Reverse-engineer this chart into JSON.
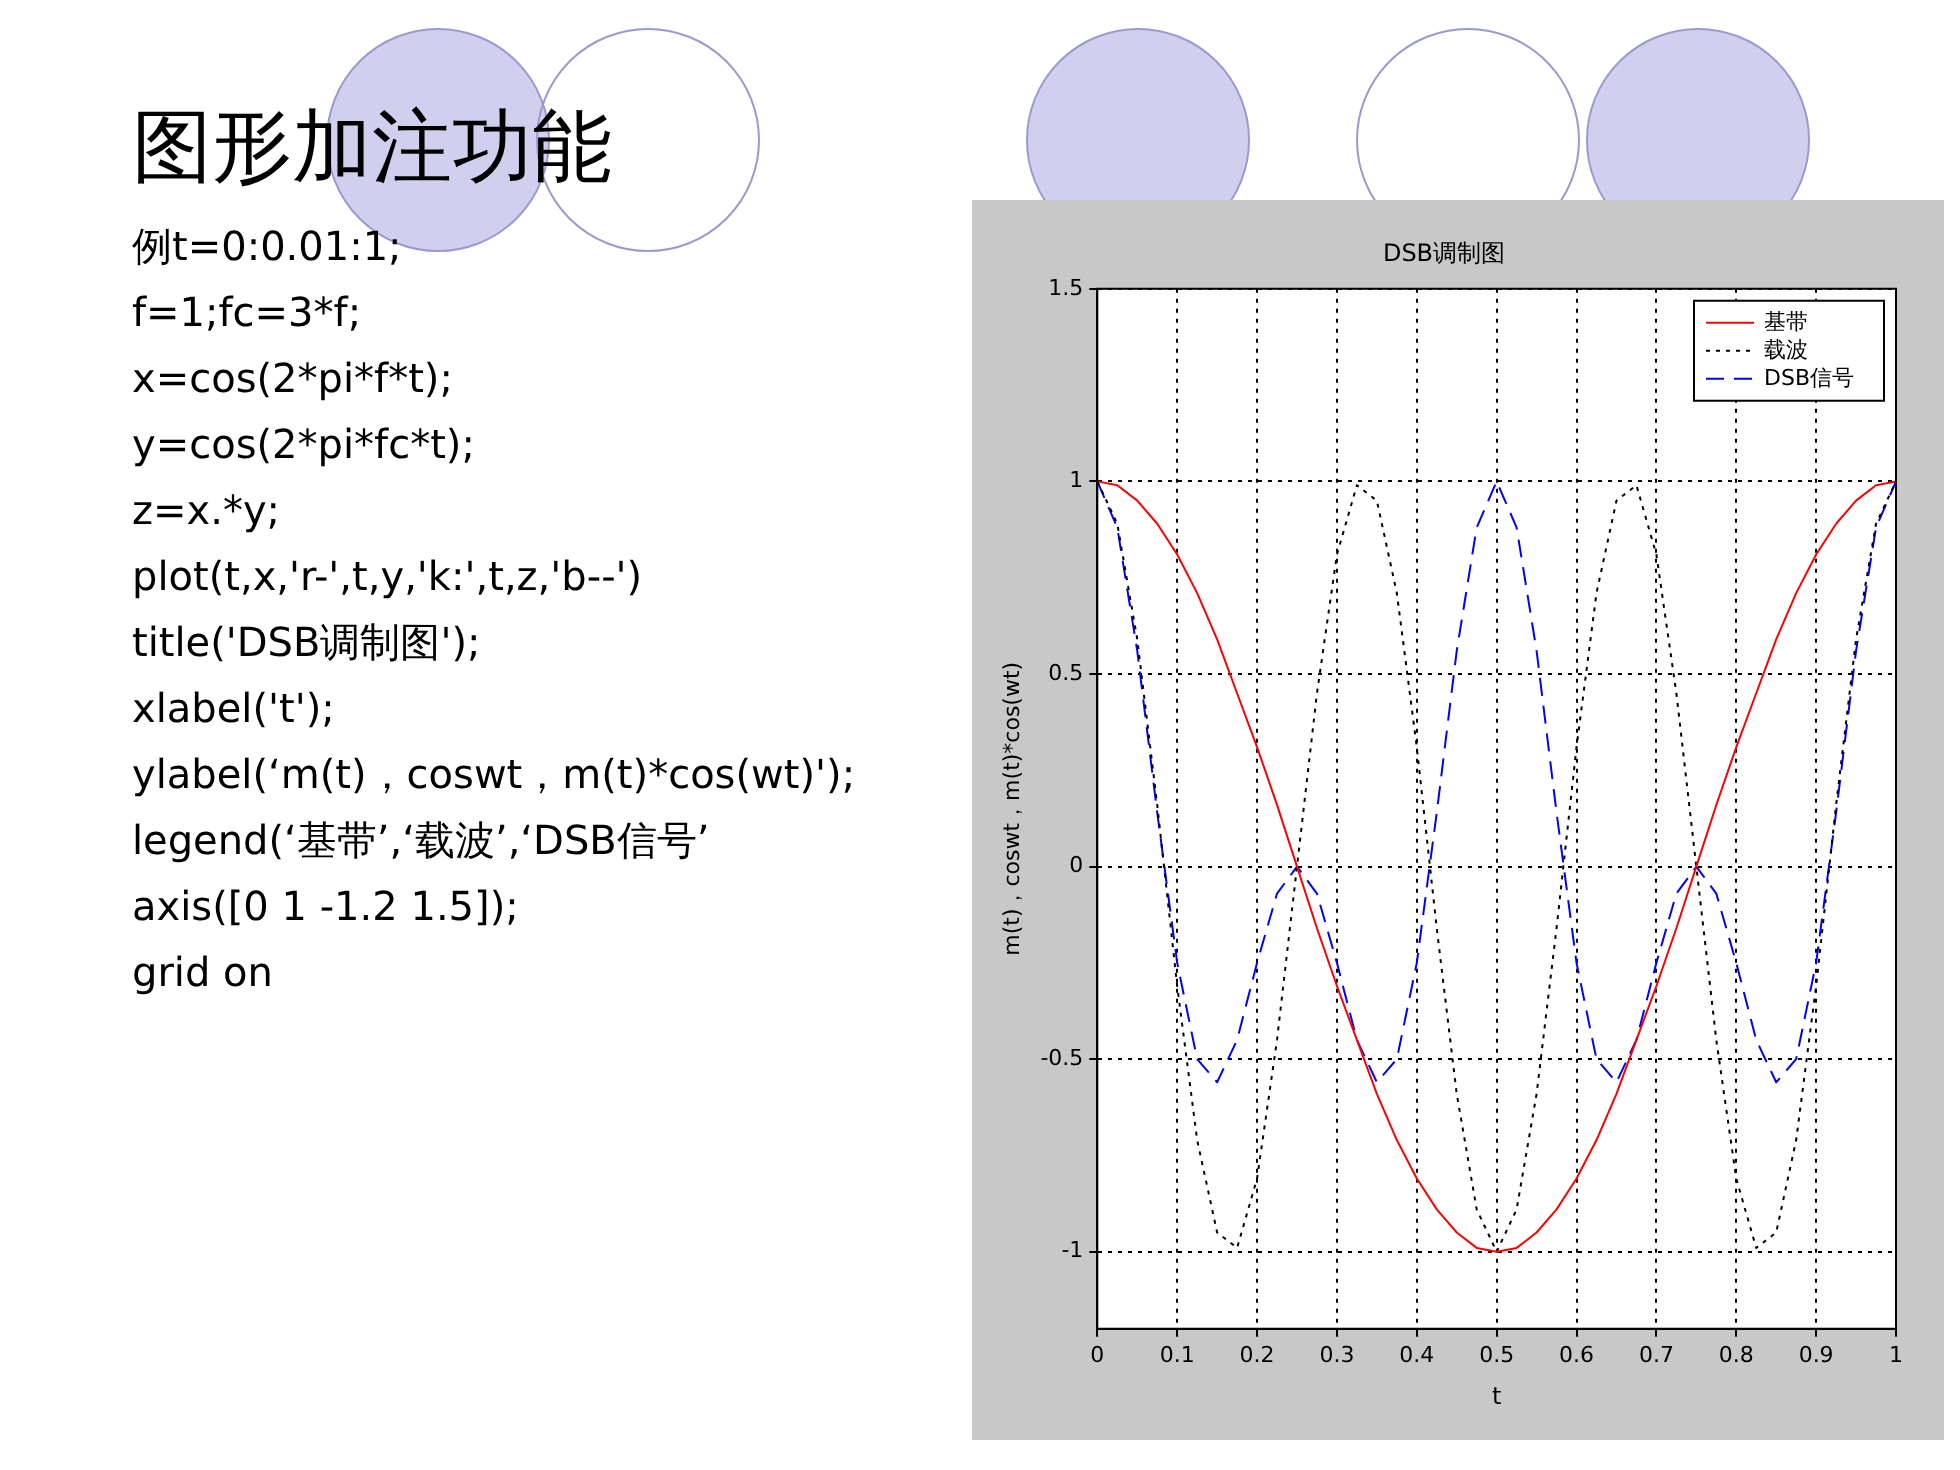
{
  "chart_data": {
    "type": "line",
    "title": "DSB调制图",
    "xlabel": "t",
    "ylabel": "m(t)，coswt，m(t)*cos(wt)",
    "x": [
      0,
      0.025,
      0.05,
      0.075,
      0.1,
      0.125,
      0.15,
      0.175,
      0.2,
      0.225,
      0.25,
      0.275,
      0.3,
      0.325,
      0.35,
      0.375,
      0.4,
      0.425,
      0.45,
      0.475,
      0.5,
      0.525,
      0.55,
      0.575,
      0.6,
      0.625,
      0.65,
      0.675,
      0.7,
      0.725,
      0.75,
      0.775,
      0.8,
      0.825,
      0.85,
      0.875,
      0.9,
      0.925,
      0.95,
      0.975,
      1
    ],
    "series": [
      {
        "name": "基带",
        "color": "#ff0000",
        "line_style": "solid",
        "values": [
          1,
          0.99,
          0.95,
          0.89,
          0.81,
          0.71,
          0.59,
          0.45,
          0.31,
          0.16,
          0,
          -0.16,
          -0.31,
          -0.45,
          -0.59,
          -0.71,
          -0.81,
          -0.89,
          -0.95,
          -0.99,
          -1,
          -0.99,
          -0.95,
          -0.89,
          -0.81,
          -0.71,
          -0.59,
          -0.45,
          -0.31,
          -0.16,
          0,
          0.16,
          0.31,
          0.45,
          0.59,
          0.71,
          0.81,
          0.89,
          0.95,
          0.99,
          1
        ]
      },
      {
        "name": "载波",
        "color": "#000000",
        "line_style": "dotted",
        "values": [
          1,
          0.89,
          0.59,
          0.16,
          -0.31,
          -0.71,
          -0.95,
          -0.99,
          -0.81,
          -0.45,
          0,
          0.45,
          0.81,
          0.99,
          0.95,
          0.71,
          0.31,
          -0.16,
          -0.59,
          -0.89,
          -1,
          -0.89,
          -0.59,
          -0.16,
          0.31,
          0.71,
          0.95,
          0.99,
          0.81,
          0.45,
          0,
          -0.45,
          -0.81,
          -0.99,
          -0.95,
          -0.71,
          -0.31,
          0.16,
          0.59,
          0.89,
          1
        ]
      },
      {
        "name": "DSB信号",
        "color": "#0000ff",
        "line_style": "dashed",
        "values": [
          1,
          0.88,
          0.56,
          0.14,
          -0.25,
          -0.5,
          -0.56,
          -0.45,
          -0.25,
          -0.07,
          0,
          -0.07,
          -0.25,
          -0.45,
          -0.56,
          -0.5,
          -0.25,
          0.14,
          0.56,
          0.88,
          1,
          0.88,
          0.56,
          0.14,
          -0.25,
          -0.5,
          -0.56,
          -0.45,
          -0.25,
          -0.07,
          0,
          -0.07,
          -0.25,
          -0.45,
          -0.56,
          -0.5,
          -0.25,
          0.14,
          0.56,
          0.88,
          1
        ]
      }
    ],
    "xlim": [
      0,
      1
    ],
    "xticks": [
      0,
      0.1,
      0.2,
      0.3,
      0.4,
      0.5,
      0.6,
      0.7,
      0.8,
      0.9,
      1
    ],
    "ylim": [
      -1.2,
      1.5
    ],
    "yticks": [
      -1,
      -0.5,
      0,
      0.5,
      1,
      1.5
    ],
    "grid": true,
    "legend": "top right",
    "marker": "none",
    "annotations": [
      "图形加注功能",
      "例t=0:0.01:1;",
      "f=1;fc=3*f;",
      "x=cos(2*pi*f*t);",
      "y=cos(2*pi*fc*t);",
      "z=x.*y;",
      "plot(t,x,'r-',t,y,'k:',t,z,'b--')",
      "title('DSB调制图');",
      "xlabel('t');",
      "ylabel(‘m(t)，coswt，m(t)*cos(wt)');",
      "legend(‘基带’,‘载波’,‘DSB信号’",
      "axis([0 1 -1.2 1.5]);",
      "grid on"
    ]
  }
}
